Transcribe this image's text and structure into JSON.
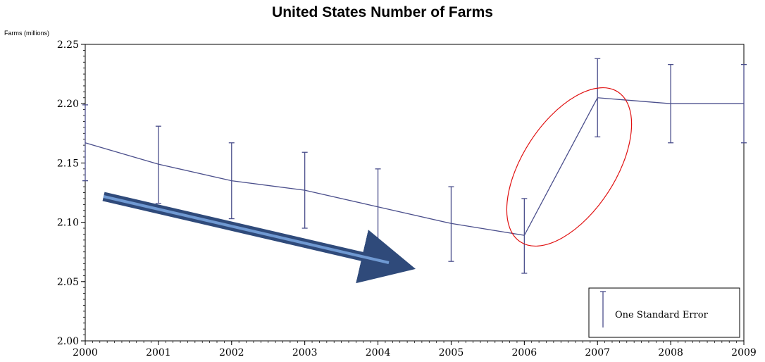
{
  "chart_data": {
    "type": "line",
    "title": "United States Number of Farms",
    "ylabel": "Farms (millions)",
    "xlabel": "",
    "x": [
      2000,
      2001,
      2002,
      2003,
      2004,
      2005,
      2006,
      2007,
      2008,
      2009
    ],
    "ylim": [
      2.0,
      2.25
    ],
    "xlim": [
      2000,
      2009
    ],
    "y_ticks": [
      "2.00",
      "2.05",
      "2.10",
      "2.15",
      "2.20",
      "2.25"
    ],
    "x_ticks": [
      "2000",
      "2001",
      "2002",
      "2003",
      "2004",
      "2005",
      "2006",
      "2007",
      "2008",
      "2009"
    ],
    "series": [
      {
        "values": [
          2.167,
          2.149,
          2.135,
          2.127,
          2.113,
          2.099,
          2.089,
          2.205,
          2.2,
          2.2
        ],
        "error_low": [
          2.135,
          2.116,
          2.103,
          2.095,
          2.081,
          2.067,
          2.057,
          2.172,
          2.167,
          2.167
        ],
        "error_high": [
          2.199,
          2.181,
          2.167,
          2.159,
          2.145,
          2.13,
          2.12,
          2.238,
          2.233,
          2.233
        ],
        "color": "#4b4f8c"
      }
    ],
    "legend": {
      "label": "One Standard Error",
      "position": "bottom-right"
    },
    "annotations": [
      {
        "kind": "arrow",
        "description": "downward trend arrow",
        "color": "#2f4a7a"
      },
      {
        "kind": "ellipse",
        "description": "highlight of 2006-2007 jump",
        "color": "#e01010"
      }
    ],
    "grid": false
  }
}
